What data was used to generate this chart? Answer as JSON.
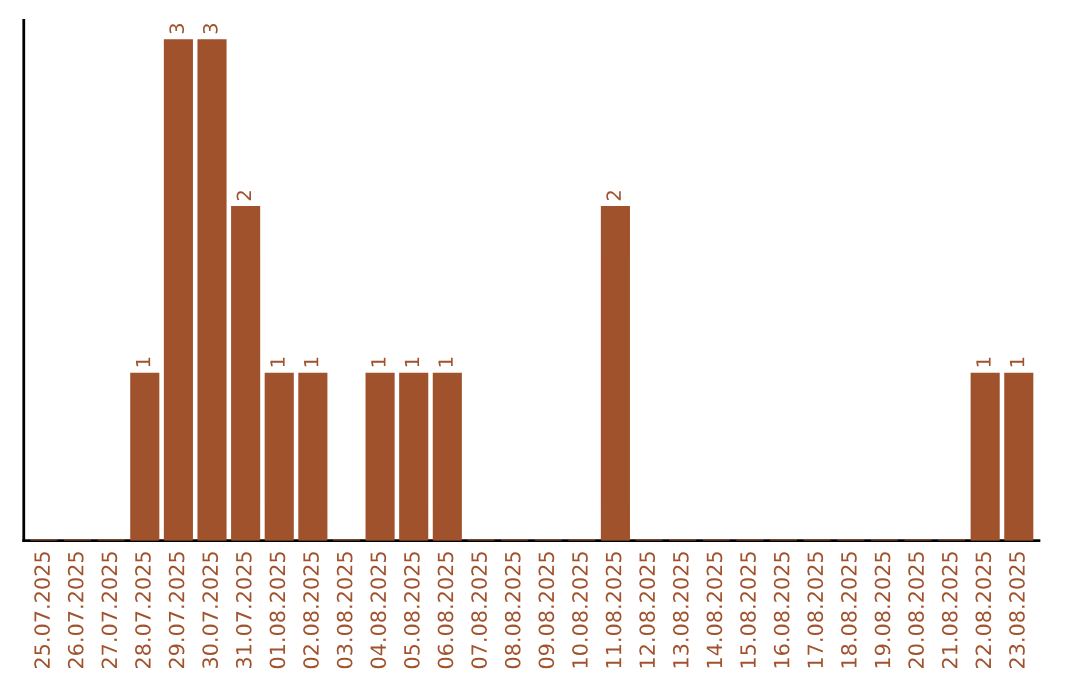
{
  "chart_data": {
    "type": "bar",
    "categories": [
      "25.07.2025",
      "26.07.2025",
      "27.07.2025",
      "28.07.2025",
      "29.07.2025",
      "30.07.2025",
      "31.07.2025",
      "01.08.2025",
      "02.08.2025",
      "03.08.2025",
      "04.08.2025",
      "05.08.2025",
      "06.08.2025",
      "07.08.2025",
      "08.08.2025",
      "09.08.2025",
      "10.08.2025",
      "11.08.2025",
      "12.08.2025",
      "13.08.2025",
      "14.08.2025",
      "15.08.2025",
      "16.08.2025",
      "17.08.2025",
      "18.08.2025",
      "19.08.2025",
      "20.08.2025",
      "21.08.2025",
      "22.08.2025",
      "23.08.2025"
    ],
    "values": [
      0,
      0,
      0,
      1,
      3,
      3,
      2,
      1,
      1,
      0,
      1,
      1,
      1,
      0,
      0,
      0,
      0,
      2,
      0,
      0,
      0,
      0,
      0,
      0,
      0,
      0,
      0,
      0,
      1,
      1
    ],
    "value_labels": [
      null,
      null,
      null,
      "1",
      "3",
      "3",
      "2",
      "1",
      "1",
      null,
      "1",
      "1",
      "1",
      null,
      null,
      null,
      null,
      "2",
      null,
      null,
      null,
      null,
      null,
      null,
      null,
      null,
      null,
      null,
      "1",
      "1"
    ],
    "color": "#a0522d",
    "tick_labels": "x",
    "grid": false,
    "legend": false
  }
}
